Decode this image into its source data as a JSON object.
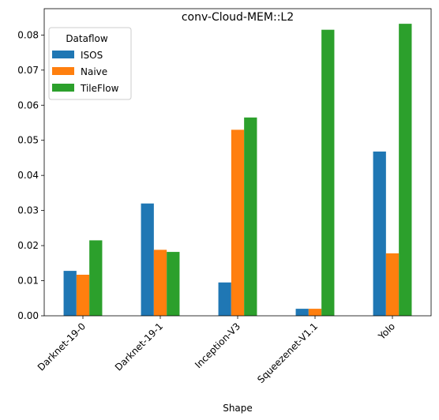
{
  "chart_data": {
    "type": "bar",
    "title": "conv-Cloud-MEM::L2",
    "xlabel": "Shape",
    "ylabel": "",
    "categories": [
      "Darknet-19-0",
      "Darknet-19-1",
      "Inception-V3",
      "Squeezenet-V1.1",
      "Yolo"
    ],
    "series": [
      {
        "name": "ISOS",
        "color": "#1f77b4",
        "values": [
          0.0128,
          0.032,
          0.0095,
          0.002,
          0.0468
        ]
      },
      {
        "name": "Naive",
        "color": "#ff7f0e",
        "values": [
          0.0117,
          0.0188,
          0.053,
          0.002,
          0.0178
        ]
      },
      {
        "name": "TileFlow",
        "color": "#2ca02c",
        "values": [
          0.0215,
          0.0182,
          0.0565,
          0.0815,
          0.0832
        ]
      }
    ],
    "ylim": [
      0,
      0.0875
    ],
    "yticks": [
      "0.00",
      "0.01",
      "0.02",
      "0.03",
      "0.04",
      "0.05",
      "0.06",
      "0.07",
      "0.08"
    ],
    "grid": false,
    "legend": {
      "title": "Dataflow",
      "placement": "top-left"
    }
  }
}
